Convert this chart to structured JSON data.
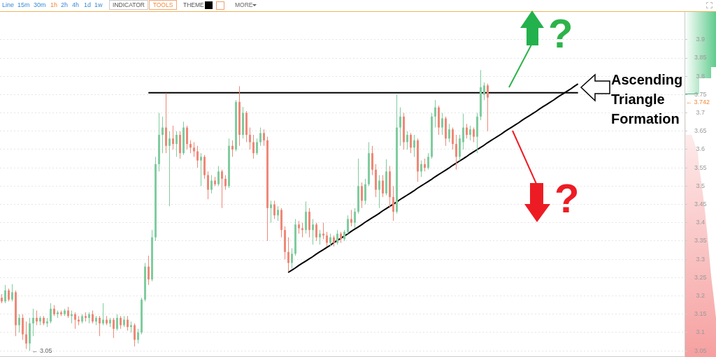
{
  "chart_data": {
    "type": "candlestick",
    "categories": [
      null,
      null,
      null,
      null,
      null,
      null,
      null,
      null,
      null,
      null,
      null,
      null,
      null,
      null,
      null,
      null,
      null,
      null,
      null,
      null,
      null,
      null,
      null,
      null,
      null,
      null,
      null,
      null,
      null,
      null,
      null,
      null,
      null,
      null,
      null,
      null,
      null,
      null,
      null,
      null,
      null,
      null,
      null,
      null,
      null,
      null,
      null,
      null,
      null,
      null,
      null,
      null,
      null,
      null,
      null,
      null,
      null,
      null,
      null,
      null,
      null,
      null,
      null,
      null,
      null,
      null,
      null,
      null,
      null,
      null,
      null,
      null,
      null,
      null,
      null,
      null,
      null,
      null,
      null,
      null,
      null,
      null,
      null,
      null,
      null,
      null,
      null,
      null,
      null,
      null,
      null,
      null,
      null,
      null,
      null,
      null,
      null,
      null,
      null,
      null,
      null,
      null,
      null,
      null,
      null,
      null,
      null,
      null,
      null,
      null,
      null,
      null,
      null,
      null,
      null,
      null,
      null,
      null,
      null,
      null,
      null,
      null,
      null,
      null,
      null,
      null,
      null,
      null,
      null,
      null,
      null,
      null,
      null,
      null,
      null,
      null,
      null,
      null,
      null,
      null,
      null,
      null,
      null,
      null,
      null,
      null,
      null,
      null,
      null,
      null,
      null,
      null,
      null,
      null,
      null,
      null,
      null,
      null,
      null,
      null,
      null,
      null,
      null,
      null,
      null,
      null,
      null,
      null,
      null,
      null,
      null,
      null,
      null,
      null,
      null,
      null,
      null,
      null,
      null,
      null,
      null,
      null,
      null,
      null,
      null,
      null,
      null,
      null,
      null,
      null,
      null,
      null,
      null,
      null,
      null,
      null
    ],
    "ohlc": [
      [
        3.195,
        3.205,
        3.18,
        3.185
      ],
      [
        3.185,
        3.23,
        3.18,
        3.215
      ],
      [
        3.215,
        3.22,
        3.185,
        3.19
      ],
      [
        3.19,
        3.232,
        3.185,
        3.21
      ],
      [
        3.21,
        3.215,
        3.09,
        3.12
      ],
      [
        3.12,
        3.15,
        3.1,
        3.14
      ],
      [
        3.14,
        3.15,
        3.08,
        3.095
      ],
      [
        3.095,
        3.13,
        3.055,
        3.07
      ],
      [
        3.07,
        3.14,
        3.05,
        3.125
      ],
      [
        3.125,
        3.165,
        3.09,
        3.14
      ],
      [
        3.14,
        3.16,
        3.12,
        3.13
      ],
      [
        3.13,
        3.145,
        3.12,
        3.14
      ],
      [
        3.14,
        3.145,
        3.12,
        3.125
      ],
      [
        3.125,
        3.14,
        3.115,
        3.13
      ],
      [
        3.13,
        3.18,
        3.125,
        3.165
      ],
      [
        3.165,
        3.175,
        3.145,
        3.15
      ],
      [
        3.15,
        3.16,
        3.14,
        3.155
      ],
      [
        3.155,
        3.16,
        3.145,
        3.15
      ],
      [
        3.15,
        3.165,
        3.145,
        3.16
      ],
      [
        3.16,
        3.17,
        3.14,
        3.145
      ],
      [
        3.145,
        3.16,
        3.125,
        3.15
      ],
      [
        3.15,
        3.155,
        3.11,
        3.135
      ],
      [
        3.135,
        3.145,
        3.12,
        3.13
      ],
      [
        3.13,
        3.15,
        3.125,
        3.145
      ],
      [
        3.145,
        3.155,
        3.13,
        3.14
      ],
      [
        3.14,
        3.155,
        3.125,
        3.15
      ],
      [
        3.15,
        3.16,
        3.125,
        3.13
      ],
      [
        3.13,
        3.145,
        3.12,
        3.14
      ],
      [
        3.14,
        3.145,
        3.09,
        3.125
      ],
      [
        3.125,
        3.18,
        3.12,
        3.135
      ],
      [
        3.135,
        3.145,
        3.12,
        3.125
      ],
      [
        3.125,
        3.14,
        3.115,
        3.135
      ],
      [
        3.135,
        3.14,
        3.085,
        3.11
      ],
      [
        3.11,
        3.15,
        3.105,
        3.14
      ],
      [
        3.14,
        3.145,
        3.11,
        3.12
      ],
      [
        3.12,
        3.145,
        3.115,
        3.135
      ],
      [
        3.135,
        3.145,
        3.105,
        3.115
      ],
      [
        3.115,
        3.13,
        3.1,
        3.12
      ],
      [
        3.12,
        3.125,
        3.062,
        3.08
      ],
      [
        3.08,
        3.11,
        3.07,
        3.1
      ],
      [
        3.1,
        3.195,
        3.095,
        3.19
      ],
      [
        3.19,
        3.29,
        3.185,
        3.28
      ],
      [
        3.28,
        3.31,
        3.23,
        3.245
      ],
      [
        3.245,
        3.38,
        3.24,
        3.36
      ],
      [
        3.36,
        3.58,
        3.35,
        3.56
      ],
      [
        3.56,
        3.7,
        3.54,
        3.64
      ],
      [
        3.64,
        3.69,
        3.59,
        3.66
      ],
      [
        3.66,
        3.754,
        3.59,
        3.61
      ],
      [
        3.61,
        3.65,
        3.445,
        3.63
      ],
      [
        3.63,
        3.665,
        3.6,
        3.615
      ],
      [
        3.615,
        3.65,
        3.58,
        3.64
      ],
      [
        3.64,
        3.65,
        3.575,
        3.59
      ],
      [
        3.59,
        3.676,
        3.585,
        3.66
      ],
      [
        3.66,
        3.665,
        3.6,
        3.615
      ],
      [
        3.615,
        3.625,
        3.59,
        3.605
      ],
      [
        3.605,
        3.62,
        3.58,
        3.595
      ],
      [
        3.595,
        3.61,
        3.55,
        3.57
      ],
      [
        3.57,
        3.59,
        3.5,
        3.58
      ],
      [
        3.58,
        3.585,
        3.52,
        3.53
      ],
      [
        3.53,
        3.54,
        3.464,
        3.49
      ],
      [
        3.49,
        3.53,
        3.48,
        3.515
      ],
      [
        3.515,
        3.525,
        3.5,
        3.505
      ],
      [
        3.505,
        3.555,
        3.5,
        3.54
      ],
      [
        3.54,
        3.545,
        3.44,
        3.52
      ],
      [
        3.52,
        3.53,
        3.49,
        3.5
      ],
      [
        3.5,
        3.63,
        3.495,
        3.61
      ],
      [
        3.61,
        3.625,
        3.58,
        3.6
      ],
      [
        3.6,
        3.735,
        3.595,
        3.73
      ],
      [
        3.73,
        3.773,
        3.61,
        3.64
      ],
      [
        3.64,
        3.716,
        3.63,
        3.7
      ],
      [
        3.7,
        3.705,
        3.62,
        3.64
      ],
      [
        3.64,
        3.66,
        3.6,
        3.62
      ],
      [
        3.62,
        3.64,
        3.575,
        3.59
      ],
      [
        3.59,
        3.63,
        3.585,
        3.62
      ],
      [
        3.62,
        3.66,
        3.61,
        3.645
      ],
      [
        3.645,
        3.655,
        3.61,
        3.625
      ],
      [
        3.625,
        3.635,
        3.35,
        3.44
      ],
      [
        3.44,
        3.46,
        3.4,
        3.45
      ],
      [
        3.45,
        3.46,
        3.41,
        3.42
      ],
      [
        3.42,
        3.445,
        3.405,
        3.435
      ],
      [
        3.435,
        3.44,
        3.36,
        3.38
      ],
      [
        3.38,
        3.39,
        3.3,
        3.32
      ],
      [
        3.32,
        3.36,
        3.267,
        3.29
      ],
      [
        3.29,
        3.33,
        3.275,
        3.315
      ],
      [
        3.315,
        3.41,
        3.31,
        3.395
      ],
      [
        3.395,
        3.405,
        3.37,
        3.385
      ],
      [
        3.385,
        3.4,
        3.36,
        3.38
      ],
      [
        3.38,
        3.458,
        3.37,
        3.43
      ],
      [
        3.43,
        3.44,
        3.36,
        3.38
      ],
      [
        3.38,
        3.41,
        3.34,
        3.395
      ],
      [
        3.395,
        3.4,
        3.35,
        3.36
      ],
      [
        3.36,
        3.38,
        3.34,
        3.37
      ],
      [
        3.37,
        3.4,
        3.355,
        3.365
      ],
      [
        3.365,
        3.375,
        3.335,
        3.345
      ],
      [
        3.345,
        3.37,
        3.335,
        3.36
      ],
      [
        3.36,
        3.365,
        3.335,
        3.345
      ],
      [
        3.345,
        3.38,
        3.34,
        3.37
      ],
      [
        3.37,
        3.375,
        3.345,
        3.355
      ],
      [
        3.355,
        3.38,
        3.35,
        3.375
      ],
      [
        3.375,
        3.42,
        3.37,
        3.41
      ],
      [
        3.41,
        3.435,
        3.39,
        3.4
      ],
      [
        3.4,
        3.44,
        3.385,
        3.43
      ],
      [
        3.43,
        3.575,
        3.425,
        3.5
      ],
      [
        3.5,
        3.51,
        3.44,
        3.46
      ],
      [
        3.46,
        3.52,
        3.45,
        3.505
      ],
      [
        3.505,
        3.62,
        3.5,
        3.59
      ],
      [
        3.59,
        3.61,
        3.53,
        3.545
      ],
      [
        3.545,
        3.56,
        3.47,
        3.49
      ],
      [
        3.49,
        3.53,
        3.44,
        3.515
      ],
      [
        3.515,
        3.53,
        3.47,
        3.48
      ],
      [
        3.48,
        3.573,
        3.475,
        3.54
      ],
      [
        3.54,
        3.555,
        3.44,
        3.47
      ],
      [
        3.47,
        3.5,
        3.405,
        3.43
      ],
      [
        3.43,
        3.75,
        3.425,
        3.66
      ],
      [
        3.66,
        3.715,
        3.61,
        3.69
      ],
      [
        3.69,
        3.7,
        3.6,
        3.62
      ],
      [
        3.62,
        3.65,
        3.6,
        3.64
      ],
      [
        3.64,
        3.645,
        3.59,
        3.605
      ],
      [
        3.605,
        3.64,
        3.58,
        3.625
      ],
      [
        3.625,
        3.63,
        3.512,
        3.54
      ],
      [
        3.54,
        3.57,
        3.525,
        3.56
      ],
      [
        3.56,
        3.575,
        3.54,
        3.55
      ],
      [
        3.55,
        3.59,
        3.545,
        3.58
      ],
      [
        3.58,
        3.7,
        3.575,
        3.69
      ],
      [
        3.69,
        3.735,
        3.66,
        3.715
      ],
      [
        3.715,
        3.72,
        3.64,
        3.66
      ],
      [
        3.66,
        3.7,
        3.64,
        3.685
      ],
      [
        3.685,
        3.69,
        3.61,
        3.63
      ],
      [
        3.63,
        3.67,
        3.62,
        3.655
      ],
      [
        3.655,
        3.66,
        3.6,
        3.615
      ],
      [
        3.615,
        3.64,
        3.545,
        3.58
      ],
      [
        3.58,
        3.64,
        3.57,
        3.63
      ],
      [
        3.62,
        3.698,
        3.6,
        3.66
      ],
      [
        3.66,
        3.67,
        3.63,
        3.64
      ],
      [
        3.64,
        3.665,
        3.625,
        3.655
      ],
      [
        3.655,
        3.66,
        3.62,
        3.635
      ],
      [
        3.635,
        3.7,
        3.59,
        3.69
      ],
      [
        3.69,
        3.817,
        3.68,
        3.77
      ],
      [
        3.75,
        3.783,
        3.735,
        3.775
      ],
      [
        3.775,
        3.78,
        3.65,
        3.742
      ],
      null,
      null,
      null,
      null,
      null,
      null,
      null,
      null,
      null,
      null,
      null,
      null,
      null,
      null,
      null,
      null,
      null,
      null,
      null,
      null,
      null,
      null,
      null,
      null,
      null,
      null,
      null,
      null,
      null,
      null,
      null,
      null,
      null,
      null,
      null,
      null,
      null,
      null,
      null,
      null,
      null,
      null,
      null,
      null,
      null,
      null,
      null,
      null,
      null,
      null,
      null,
      null,
      null,
      null,
      null,
      null
    ],
    "series": [
      {
        "type": "line",
        "color": "#000000",
        "values": [
          null,
          null,
          null,
          null,
          null,
          null,
          null,
          null,
          null,
          null,
          null,
          null,
          null,
          null,
          null,
          null,
          null,
          null,
          null,
          null,
          null,
          null,
          null,
          null,
          null,
          null,
          null,
          null,
          null,
          null,
          null,
          null,
          null,
          null,
          null,
          null,
          null,
          null,
          null,
          null,
          null,
          null,
          3.755,
          3.755,
          3.755,
          3.755,
          3.755,
          3.755,
          3.755,
          3.755,
          3.755,
          3.755,
          3.755,
          3.755,
          3.755,
          3.755,
          3.755,
          3.755,
          3.755,
          3.755,
          3.755,
          3.755,
          3.755,
          3.755,
          3.755,
          3.755,
          3.755,
          3.755,
          3.755,
          3.755,
          3.755,
          3.755,
          3.755,
          3.755,
          3.755,
          3.755,
          3.755,
          3.755,
          3.755,
          3.755,
          3.755,
          3.755,
          3.755,
          3.755,
          3.755,
          3.755,
          3.755,
          3.755,
          3.755,
          3.755,
          3.755,
          3.755,
          3.755,
          3.755,
          3.755,
          3.755,
          3.755,
          3.755,
          3.755,
          3.755,
          3.755,
          3.755,
          3.755,
          3.755,
          3.755,
          3.755,
          3.755,
          3.755,
          3.755,
          3.755,
          3.755,
          3.755,
          3.755,
          3.755,
          3.755,
          3.755,
          3.755,
          3.755,
          3.755,
          3.755,
          3.755,
          3.755,
          3.755,
          3.755,
          3.755,
          3.755,
          3.755,
          3.755,
          3.755,
          3.755,
          3.755,
          3.755,
          3.755,
          3.755,
          3.755,
          3.755,
          3.755,
          3.755,
          3.755,
          3.755,
          3.755,
          3.755,
          3.755,
          3.755,
          3.755,
          3.755,
          3.755,
          3.755,
          3.755,
          3.755,
          3.755,
          3.755,
          3.755,
          3.755,
          3.755,
          3.755,
          3.755,
          3.755,
          3.755,
          3.755,
          3.755,
          3.755,
          3.755,
          3.755,
          3.755,
          3.755,
          null,
          null,
          null,
          null,
          null,
          null,
          null,
          null,
          null,
          null,
          null,
          null,
          null,
          null,
          null,
          null,
          null,
          null,
          null,
          null,
          null,
          null,
          null,
          null,
          null,
          null,
          null,
          null,
          null,
          null
        ]
      },
      {
        "type": "line",
        "color": "#000000",
        "values": [
          null,
          null,
          null,
          null,
          null,
          null,
          null,
          null,
          null,
          null,
          null,
          null,
          null,
          null,
          null,
          null,
          null,
          null,
          null,
          null,
          null,
          null,
          null,
          null,
          null,
          null,
          null,
          null,
          null,
          null,
          null,
          null,
          null,
          null,
          null,
          null,
          null,
          null,
          null,
          null,
          null,
          null,
          null,
          null,
          null,
          null,
          null,
          null,
          null,
          null,
          null,
          null,
          null,
          null,
          null,
          null,
          null,
          null,
          null,
          null,
          null,
          null,
          null,
          null,
          null,
          null,
          null,
          null,
          null,
          null,
          null,
          null,
          null,
          null,
          null,
          null,
          null,
          null,
          null,
          null,
          null,
          null,
          3.264,
          3.27,
          3.276,
          3.283,
          3.289,
          3.295,
          3.301,
          3.307,
          3.314,
          3.32,
          3.326,
          3.332,
          3.338,
          3.345,
          3.351,
          3.357,
          3.363,
          3.369,
          3.376,
          3.382,
          3.388,
          3.394,
          3.401,
          3.407,
          3.413,
          3.419,
          3.425,
          3.432,
          3.438,
          3.444,
          3.45,
          3.456,
          3.463,
          3.469,
          3.475,
          3.481,
          3.487,
          3.494,
          3.5,
          3.506,
          3.512,
          3.518,
          3.525,
          3.531,
          3.537,
          3.543,
          3.549,
          3.556,
          3.562,
          3.568,
          3.574,
          3.58,
          3.587,
          3.593,
          3.599,
          3.605,
          3.611,
          3.618,
          3.624,
          3.63,
          3.636,
          3.642,
          3.649,
          3.655,
          3.661,
          3.667,
          3.673,
          3.68,
          3.686,
          3.692,
          3.698,
          3.704,
          3.711,
          3.717,
          3.723,
          3.729,
          3.735,
          3.742,
          3.748,
          3.754,
          3.76,
          3.766,
          3.773,
          3.779,
          null,
          null,
          null,
          null,
          null,
          null,
          null,
          null,
          null,
          null,
          null,
          null,
          null,
          null,
          null,
          null,
          null,
          null,
          null,
          null,
          null,
          null,
          null,
          null,
          null,
          null,
          null,
          null,
          null,
          null
        ]
      }
    ],
    "ylim": [
      3.035,
      3.976
    ],
    "yticks": [
      3.05,
      3.1,
      3.15,
      3.2,
      3.25,
      3.3,
      3.35,
      3.4,
      3.45,
      3.5,
      3.55,
      3.6,
      3.65,
      3.7,
      3.75,
      3.8,
      3.85,
      3.9
    ],
    "grid": "y",
    "tick_labels": "y",
    "annotations": [
      "Line",
      "15m",
      "30m",
      "1h",
      "2h",
      "4h",
      "1d",
      "1w",
      "INDICATOR",
      "TOOLS",
      "THEME",
      "MORE",
      "Ascending Triangle Formation",
      "?",
      "?",
      "← 3.05",
      "← 3.742"
    ]
  }
}
